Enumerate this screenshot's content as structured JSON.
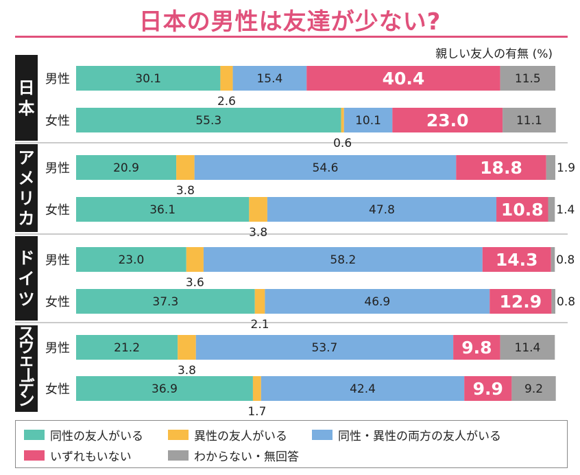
{
  "title": "日本の男性は友達が少ない?",
  "subtitle": "親しい友人の有無 (%)",
  "colors": {
    "title": "#e0517b",
    "same_sex": "#5cc4b0",
    "opposite_sex": "#f9bc45",
    "both": "#7aaee0",
    "none": "#e8567c",
    "unknown": "#a0a0a0",
    "country_bg": "#1b1b1b"
  },
  "chart_data": {
    "type": "bar",
    "stacked": true,
    "orientation": "horizontal",
    "unit": "%",
    "xlim": [
      0,
      100
    ],
    "grid": false,
    "legend_position": "bottom",
    "groups": [
      {
        "country": "日本",
        "rows": [
          {
            "label": "男性",
            "values": [
              30.1,
              2.6,
              15.4,
              40.4,
              11.5
            ]
          },
          {
            "label": "女性",
            "values": [
              55.3,
              0.6,
              10.1,
              23.0,
              11.1
            ]
          }
        ]
      },
      {
        "country": "アメリカ",
        "rows": [
          {
            "label": "男性",
            "values": [
              20.9,
              3.8,
              54.6,
              18.8,
              1.9
            ]
          },
          {
            "label": "女性",
            "values": [
              36.1,
              3.8,
              47.8,
              10.8,
              1.4
            ]
          }
        ]
      },
      {
        "country": "ドイツ",
        "rows": [
          {
            "label": "男性",
            "values": [
              23.0,
              3.6,
              58.2,
              14.3,
              0.8
            ]
          },
          {
            "label": "女性",
            "values": [
              37.3,
              2.1,
              46.9,
              12.9,
              0.8
            ]
          }
        ]
      },
      {
        "country": "スウェーデン",
        "rows": [
          {
            "label": "男性",
            "values": [
              21.2,
              3.8,
              53.7,
              9.8,
              11.4
            ]
          },
          {
            "label": "女性",
            "values": [
              36.9,
              1.7,
              42.4,
              9.9,
              9.2
            ]
          }
        ]
      }
    ],
    "series": [
      {
        "name": "同性の友人がいる",
        "color": "#5cc4b0"
      },
      {
        "name": "異性の友人がいる",
        "color": "#f9bc45"
      },
      {
        "name": "同性・異性の両方の友人がいる",
        "color": "#7aaee0"
      },
      {
        "name": "いずれもいない",
        "color": "#e8567c"
      },
      {
        "name": "わからない・無回答",
        "color": "#a0a0a0"
      }
    ]
  }
}
